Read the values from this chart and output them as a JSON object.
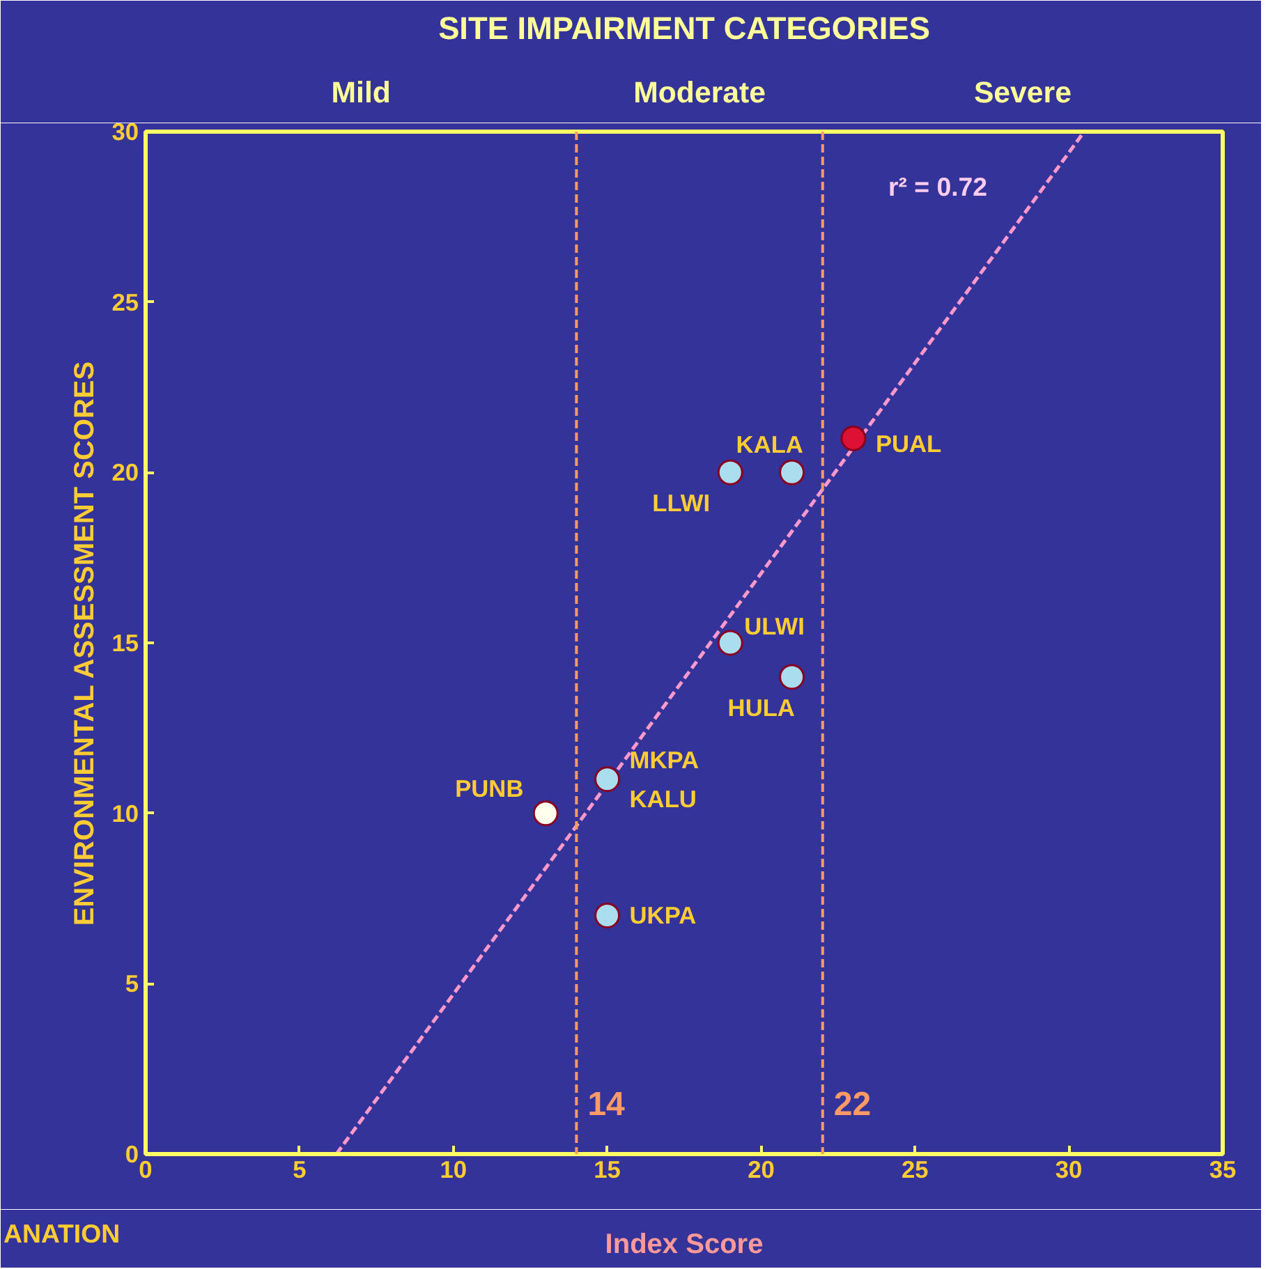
{
  "chart_data": {
    "type": "scatter",
    "title": "SITE IMPAIRMENT CATEGORIES",
    "xlabel": "Index Score",
    "ylabel": "ENVIRONMENTAL ASSESSMENT SCORES",
    "series": [
      {
        "marker": "circle",
        "x": [
          13,
          15,
          15,
          19,
          21,
          19,
          21,
          23
        ],
        "values": [
          10,
          11,
          7,
          20,
          20,
          15,
          14,
          21
        ],
        "colors": [
          "#ffffee",
          "#aaddee",
          "#aaddee",
          "#aaddee",
          "#aaddee",
          "#aaddee",
          "#aaddee",
          "#dd1133"
        ]
      },
      {
        "type": "line",
        "x": [
          6.2,
          30.5
        ],
        "values": [
          0,
          30
        ],
        "color": "#ff99cc",
        "line_style": "dashed"
      }
    ],
    "xlim": [
      0,
      35
    ],
    "ylim": [
      0,
      30
    ],
    "xticks": [
      0,
      5,
      10,
      15,
      20,
      25,
      30,
      35
    ],
    "yticks": [
      0,
      5,
      10,
      15,
      20,
      25,
      30
    ],
    "grid": false,
    "ref_lines": [
      {
        "axis": "x",
        "value": 14,
        "label": "14",
        "color": "#ff9966",
        "line_style": "dashed"
      },
      {
        "axis": "x",
        "value": 22,
        "label": "22",
        "color": "#ff9966",
        "line_style": "dashed"
      }
    ],
    "annotations": [
      "Mild",
      "Moderate",
      "Severe",
      "r² = 0.72",
      {
        "text": "PUNB",
        "x": 13,
        "y": 10
      },
      {
        "text": "MKPA",
        "x": 15,
        "y": 11
      },
      {
        "text": "KALU",
        "x": 15,
        "y": 11
      },
      {
        "text": "UKPA",
        "x": 15,
        "y": 7
      },
      {
        "text": "LLWI",
        "x": 19,
        "y": 20
      },
      {
        "text": "KALA",
        "x": 21,
        "y": 20
      },
      {
        "text": "ULWI",
        "x": 19,
        "y": 15
      },
      {
        "text": "HULA",
        "x": 21,
        "y": 14
      },
      {
        "text": "PUAL",
        "x": 23,
        "y": 21
      },
      "ANATION"
    ]
  }
}
